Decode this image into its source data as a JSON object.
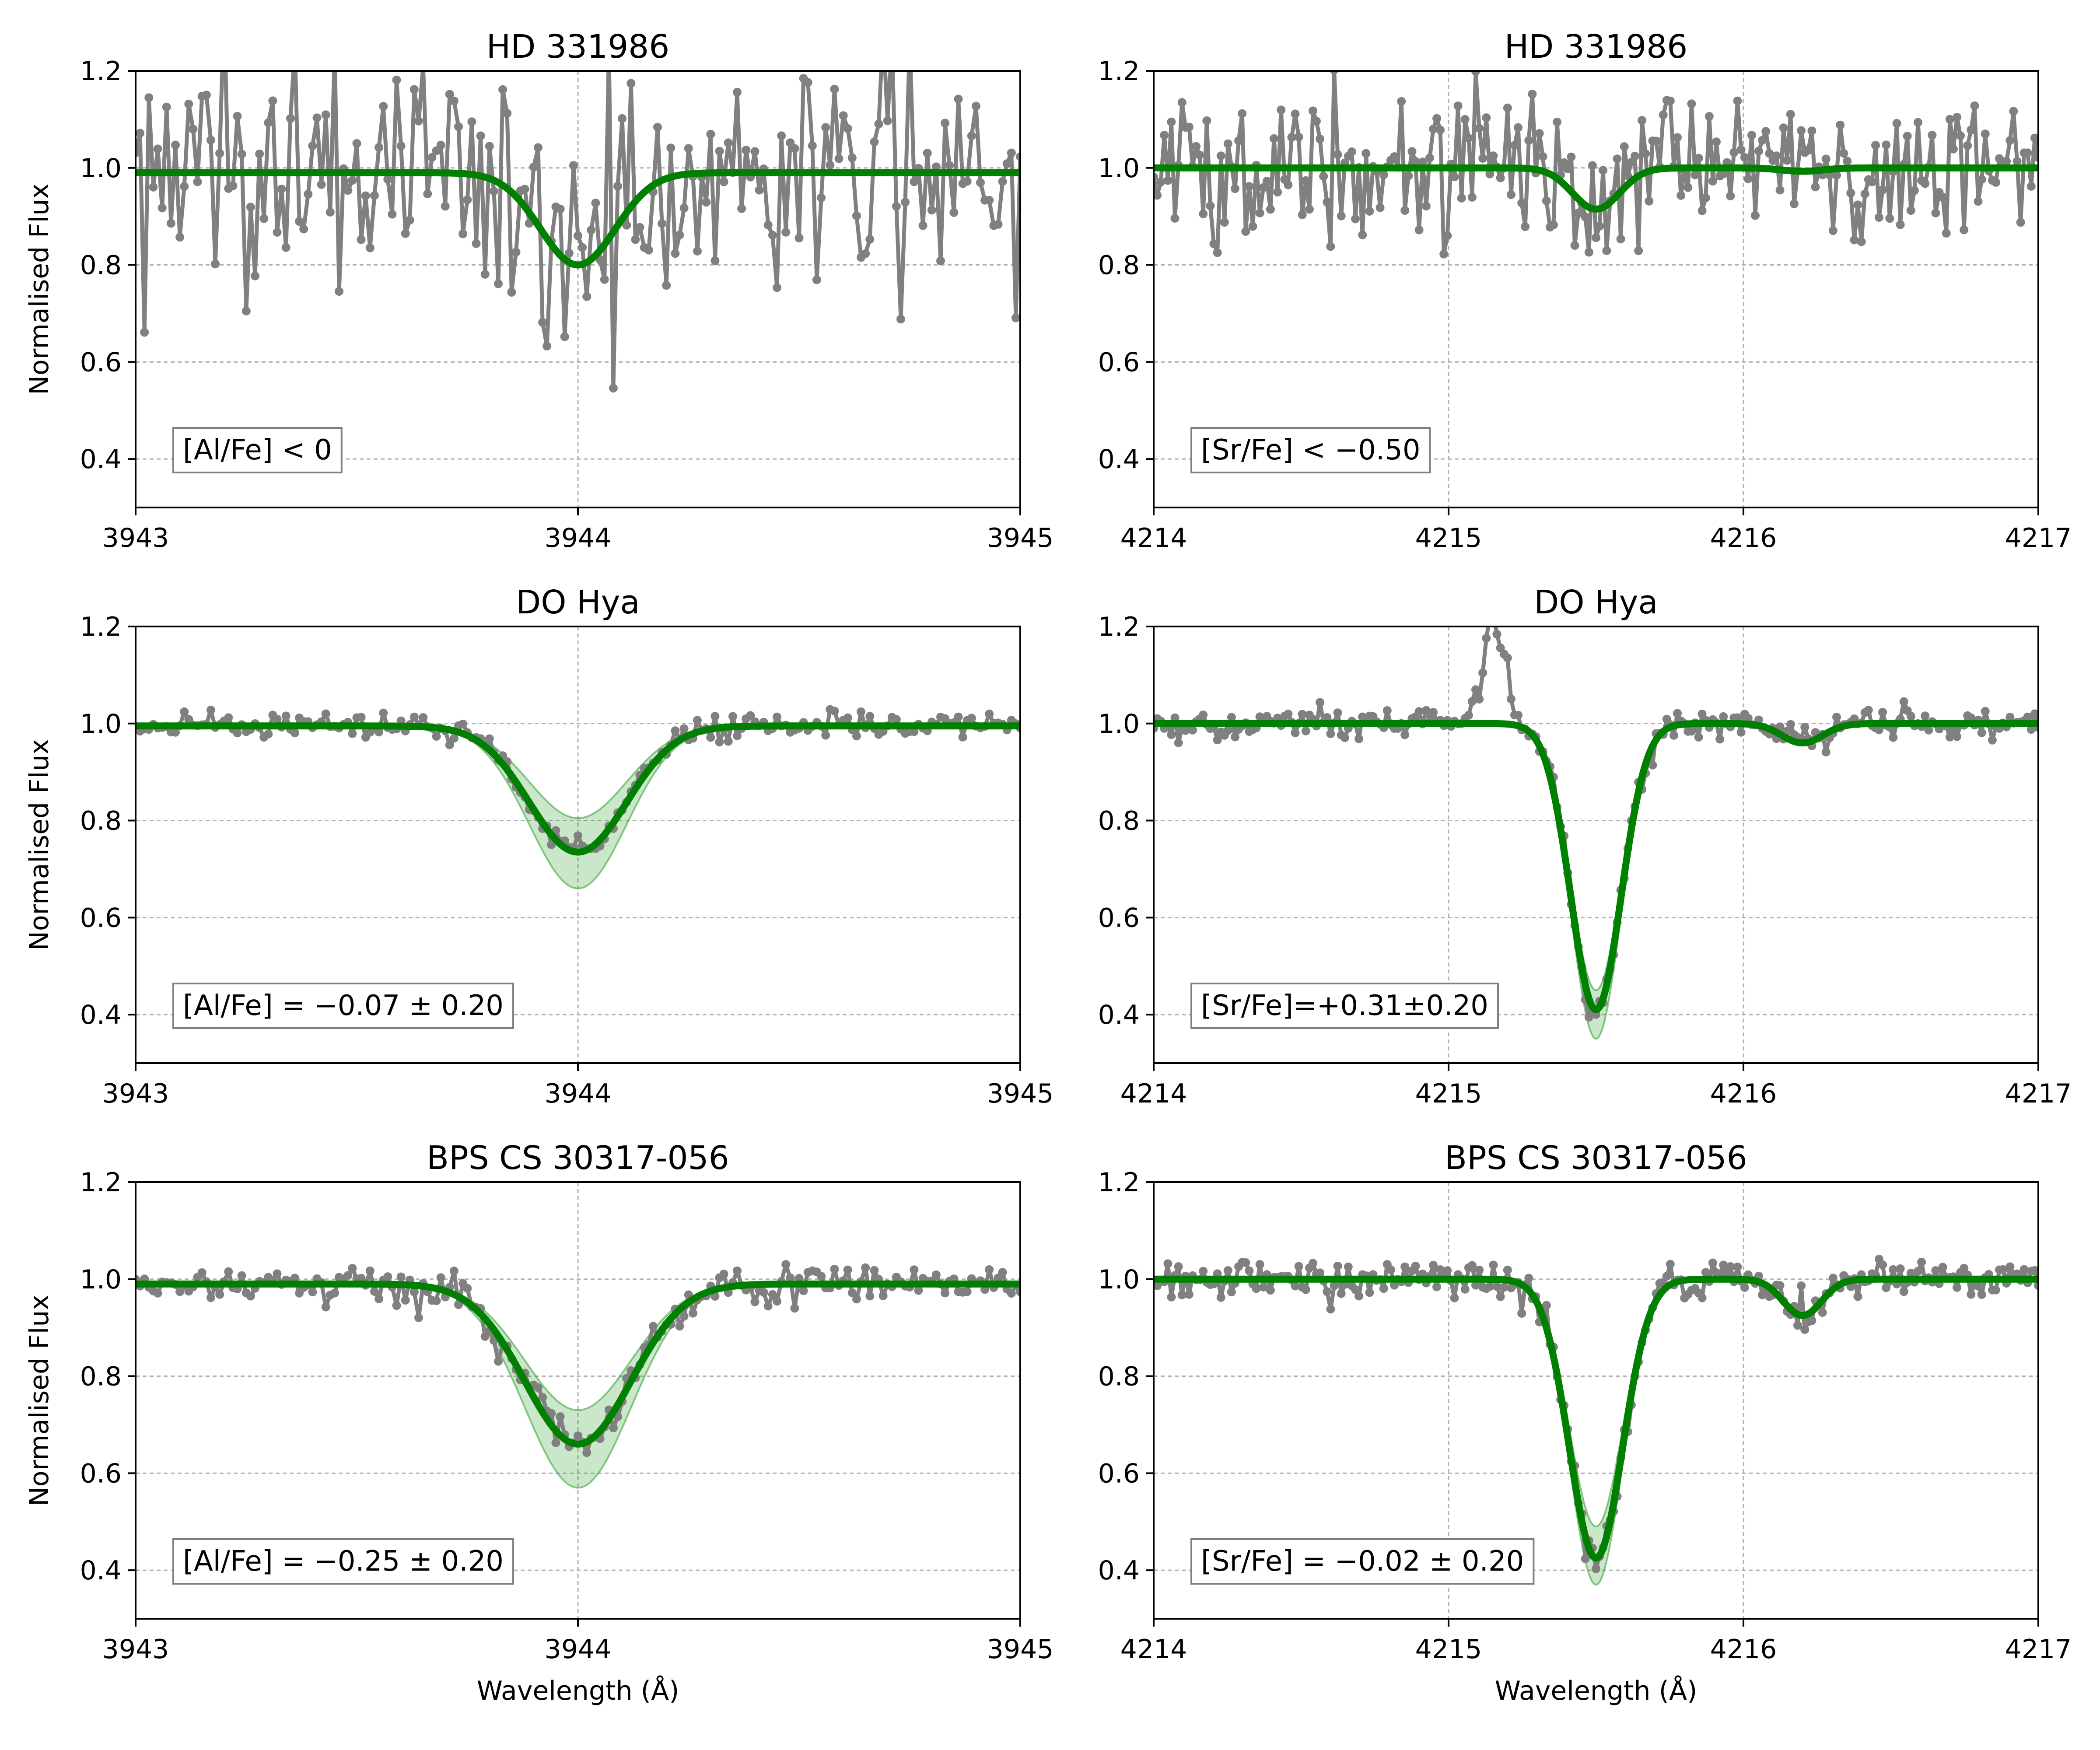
{
  "figure": {
    "colors": {
      "data": "#808080",
      "model": "#008000",
      "band": "#2ca02c",
      "grid": "#b0b0b0"
    }
  },
  "chart_data": [
    {
      "type": "line",
      "title": "HD 331986",
      "xlabel": "",
      "ylabel": "Normalised Flux",
      "xlim": [
        3943,
        3945
      ],
      "ylim": [
        0.3,
        1.2
      ],
      "xticks": [
        3943,
        3944,
        3945
      ],
      "xtick_labels": [
        "3943",
        "3944",
        "3945"
      ],
      "yticks": [
        0.4,
        0.6,
        0.8,
        1.0,
        1.2
      ],
      "ytick_labels": [
        "0.4",
        "0.6",
        "0.8",
        "1.0",
        "1.2"
      ],
      "grid": true,
      "annotation": "[Al/Fe] < 0",
      "series": [
        {
          "role": "observed",
          "noise": 0.13,
          "x_step": 0.01,
          "kind": "noisy"
        },
        {
          "role": "model",
          "continuum": 0.99,
          "lines": [
            {
              "center": 3944.0,
              "depth": 0.19,
              "sigma": 0.085
            }
          ]
        }
      ]
    },
    {
      "type": "line",
      "title": "HD 331986",
      "xlabel": "",
      "ylabel": "",
      "xlim": [
        4214,
        4217
      ],
      "ylim": [
        0.3,
        1.2
      ],
      "xticks": [
        4214,
        4215,
        4216,
        4217
      ],
      "xtick_labels": [
        "4214",
        "4215",
        "4216",
        "4217"
      ],
      "yticks": [
        0.4,
        0.6,
        0.8,
        1.0,
        1.2
      ],
      "ytick_labels": [
        "0.4",
        "0.6",
        "0.8",
        "1.0",
        "1.2"
      ],
      "grid": true,
      "annotation": "[Sr/Fe] < −0.50",
      "series": [
        {
          "role": "observed",
          "noise": 0.07,
          "x_step": 0.012,
          "kind": "noisy"
        },
        {
          "role": "model",
          "continuum": 1.0,
          "lines": [
            {
              "center": 4215.5,
              "depth": 0.085,
              "sigma": 0.08
            },
            {
              "center": 4216.2,
              "depth": 0.007,
              "sigma": 0.07
            }
          ]
        }
      ]
    },
    {
      "type": "line",
      "title": "DO Hya",
      "xlabel": "",
      "ylabel": "Normalised Flux",
      "xlim": [
        3943,
        3945
      ],
      "ylim": [
        0.3,
        1.2
      ],
      "xticks": [
        3943,
        3944,
        3945
      ],
      "xtick_labels": [
        "3943",
        "3944",
        "3945"
      ],
      "yticks": [
        0.4,
        0.6,
        0.8,
        1.0,
        1.2
      ],
      "ytick_labels": [
        "0.4",
        "0.6",
        "0.8",
        "1.0",
        "1.2"
      ],
      "grid": true,
      "annotation": "[Al/Fe] = −0.07 ± 0.20",
      "series": [
        {
          "role": "observed",
          "noise": 0.012,
          "x_step": 0.01,
          "kind": "smooth"
        },
        {
          "role": "model",
          "continuum": 0.995,
          "lines": [
            {
              "center": 3944.0,
              "depth": 0.26,
              "sigma": 0.11
            }
          ]
        },
        {
          "role": "band_upper",
          "depth": 0.19
        },
        {
          "role": "band_lower",
          "depth": 0.335
        }
      ]
    },
    {
      "type": "line",
      "title": "DO Hya",
      "xlabel": "",
      "ylabel": "",
      "xlim": [
        4214,
        4217
      ],
      "ylim": [
        0.3,
        1.2
      ],
      "xticks": [
        4214,
        4215,
        4216,
        4217
      ],
      "xtick_labels": [
        "4214",
        "4215",
        "4216",
        "4217"
      ],
      "yticks": [
        0.4,
        0.6,
        0.8,
        1.0,
        1.2
      ],
      "ytick_labels": [
        "0.4",
        "0.6",
        "0.8",
        "1.0",
        "1.2"
      ],
      "grid": true,
      "annotation": "[Sr/Fe]=+0.31±0.20",
      "series": [
        {
          "role": "observed",
          "noise": 0.015,
          "x_step": 0.012,
          "kind": "smooth",
          "spike": {
            "from": 4215.05,
            "to": 4215.25,
            "peak": 1.24
          }
        },
        {
          "role": "model",
          "continuum": 1.0,
          "lines": [
            {
              "center": 4215.5,
              "depth": 0.59,
              "sigma": 0.085
            },
            {
              "center": 4216.2,
              "depth": 0.04,
              "sigma": 0.07
            }
          ]
        },
        {
          "role": "band_upper",
          "depth": 0.55
        },
        {
          "role": "band_lower",
          "depth": 0.65
        }
      ]
    },
    {
      "type": "line",
      "title": "BPS CS 30317-056",
      "xlabel": "Wavelength (Å)",
      "ylabel": "Normalised Flux",
      "xlim": [
        3943,
        3945
      ],
      "ylim": [
        0.3,
        1.2
      ],
      "xticks": [
        3943,
        3944,
        3945
      ],
      "xtick_labels": [
        "3943",
        "3944",
        "3945"
      ],
      "yticks": [
        0.4,
        0.6,
        0.8,
        1.0,
        1.2
      ],
      "ytick_labels": [
        "0.4",
        "0.6",
        "0.8",
        "1.0",
        "1.2"
      ],
      "grid": true,
      "annotation": "[Al/Fe] = −0.25 ± 0.20",
      "series": [
        {
          "role": "observed",
          "noise": 0.02,
          "x_step": 0.01,
          "kind": "smooth"
        },
        {
          "role": "model",
          "continuum": 0.99,
          "lines": [
            {
              "center": 3944.0,
              "depth": 0.33,
              "sigma": 0.12
            }
          ]
        },
        {
          "role": "band_upper",
          "depth": 0.26
        },
        {
          "role": "band_lower",
          "depth": 0.42
        }
      ]
    },
    {
      "type": "line",
      "title": "BPS CS 30317-056",
      "xlabel": "Wavelength (Å)",
      "ylabel": "",
      "xlim": [
        4214,
        4217
      ],
      "ylim": [
        0.3,
        1.2
      ],
      "xticks": [
        4214,
        4215,
        4216,
        4217
      ],
      "xtick_labels": [
        "4214",
        "4215",
        "4216",
        "4217"
      ],
      "yticks": [
        0.4,
        0.6,
        0.8,
        1.0,
        1.2
      ],
      "ytick_labels": [
        "0.4",
        "0.6",
        "0.8",
        "1.0",
        "1.2"
      ],
      "grid": true,
      "annotation": "[Sr/Fe] = −0.02 ± 0.20",
      "series": [
        {
          "role": "observed",
          "noise": 0.02,
          "x_step": 0.012,
          "kind": "smooth"
        },
        {
          "role": "model",
          "continuum": 1.0,
          "lines": [
            {
              "center": 4215.5,
              "depth": 0.575,
              "sigma": 0.09
            },
            {
              "center": 4216.2,
              "depth": 0.075,
              "sigma": 0.065
            }
          ]
        },
        {
          "role": "band_upper",
          "depth": 0.51
        },
        {
          "role": "band_lower",
          "depth": 0.63
        }
      ]
    }
  ]
}
